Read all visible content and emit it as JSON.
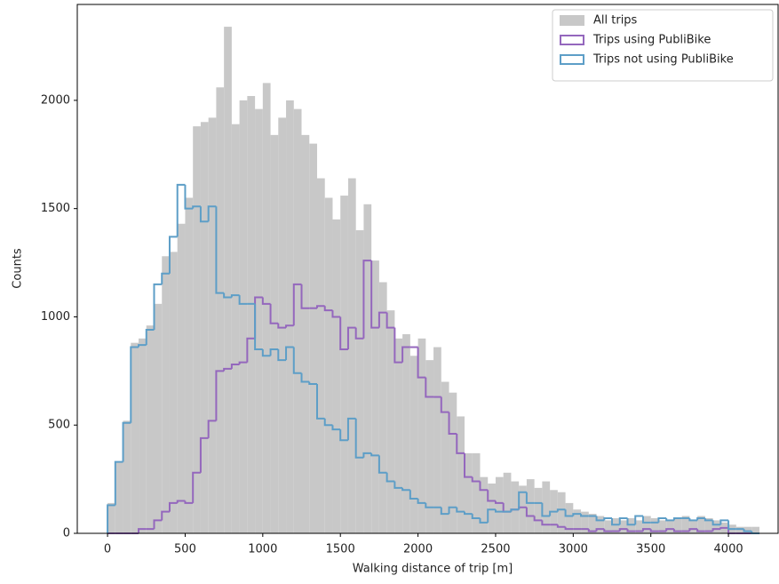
{
  "chart_data": {
    "type": "histogram",
    "xlabel": "Walking distance of trip [m]",
    "ylabel": "Counts",
    "bins": [
      0,
      50,
      100,
      150,
      200,
      250,
      300,
      350,
      400,
      450,
      500,
      550,
      600,
      650,
      700,
      750,
      800,
      850,
      900,
      950,
      1000,
      1050,
      1100,
      1150,
      1200,
      1250,
      1300,
      1350,
      1400,
      1450,
      1500,
      1550,
      1600,
      1650,
      1700,
      1750,
      1800,
      1850,
      1900,
      1950,
      2000,
      2050,
      2100,
      2150,
      2200,
      2250,
      2300,
      2350,
      2400,
      2450,
      2500,
      2550,
      2600,
      2650,
      2700,
      2750,
      2800,
      2850,
      2900,
      2950,
      3000,
      3050,
      3100,
      3150,
      3200,
      3250,
      3300,
      3350,
      3400,
      3450,
      3500,
      3550,
      3600,
      3650,
      3700,
      3750,
      3800,
      3850,
      3900,
      3950,
      4000,
      4050,
      4100,
      4150,
      4200
    ],
    "series": [
      {
        "name": "All trips",
        "style": "filled",
        "color": "#c8c8c8",
        "values": [
          140,
          330,
          520,
          880,
          900,
          960,
          1060,
          1280,
          1300,
          1430,
          1550,
          1880,
          1900,
          1920,
          2060,
          2340,
          1890,
          2000,
          2020,
          1960,
          2080,
          1840,
          1920,
          2000,
          1960,
          1840,
          1800,
          1640,
          1550,
          1450,
          1560,
          1640,
          1400,
          1520,
          1260,
          1160,
          1030,
          900,
          920,
          820,
          900,
          800,
          860,
          700,
          650,
          540,
          370,
          370,
          260,
          230,
          260,
          280,
          240,
          220,
          250,
          210,
          240,
          200,
          190,
          140,
          110,
          100,
          90,
          80,
          60,
          70,
          60,
          70,
          60,
          80,
          70,
          60,
          60,
          70,
          80,
          60,
          80,
          70,
          60,
          50,
          40,
          30,
          30,
          30
        ]
      },
      {
        "name": "Trips using PubliBike",
        "style": "step",
        "color": "#9467bd",
        "values": [
          0,
          0,
          0,
          0,
          20,
          20,
          60,
          100,
          140,
          150,
          140,
          280,
          440,
          520,
          750,
          760,
          780,
          790,
          900,
          1090,
          1060,
          970,
          950,
          960,
          1150,
          1040,
          1040,
          1050,
          1030,
          1000,
          850,
          950,
          900,
          1260,
          950,
          1020,
          950,
          790,
          860,
          860,
          720,
          630,
          630,
          560,
          460,
          370,
          260,
          240,
          200,
          150,
          140,
          100,
          110,
          120,
          80,
          60,
          40,
          40,
          30,
          20,
          20,
          20,
          10,
          20,
          10,
          10,
          20,
          10,
          10,
          20,
          10,
          10,
          20,
          10,
          10,
          20,
          10,
          10,
          20,
          25,
          0,
          0,
          0,
          0
        ]
      },
      {
        "name": "Trips not using PubliBike",
        "style": "step",
        "color": "#5d9ec7",
        "values": [
          130,
          330,
          510,
          860,
          870,
          940,
          1150,
          1200,
          1370,
          1610,
          1500,
          1510,
          1440,
          1510,
          1110,
          1090,
          1100,
          1060,
          1060,
          850,
          820,
          850,
          800,
          860,
          740,
          700,
          690,
          530,
          500,
          480,
          430,
          530,
          350,
          370,
          360,
          280,
          240,
          210,
          200,
          160,
          140,
          120,
          120,
          90,
          120,
          100,
          90,
          70,
          50,
          110,
          100,
          100,
          110,
          190,
          140,
          140,
          80,
          100,
          110,
          80,
          90,
          80,
          80,
          60,
          70,
          40,
          70,
          40,
          80,
          50,
          50,
          70,
          60,
          70,
          70,
          60,
          70,
          60,
          40,
          60,
          20,
          20,
          10,
          0
        ]
      }
    ],
    "xlim": [
      -195,
      4320
    ],
    "ylim": [
      0,
      2443
    ],
    "xticks": [
      0,
      500,
      1000,
      1500,
      2000,
      2500,
      3000,
      3500,
      4000
    ],
    "yticks": [
      0,
      500,
      1000,
      1500,
      2000
    ],
    "legend": "upper right"
  }
}
